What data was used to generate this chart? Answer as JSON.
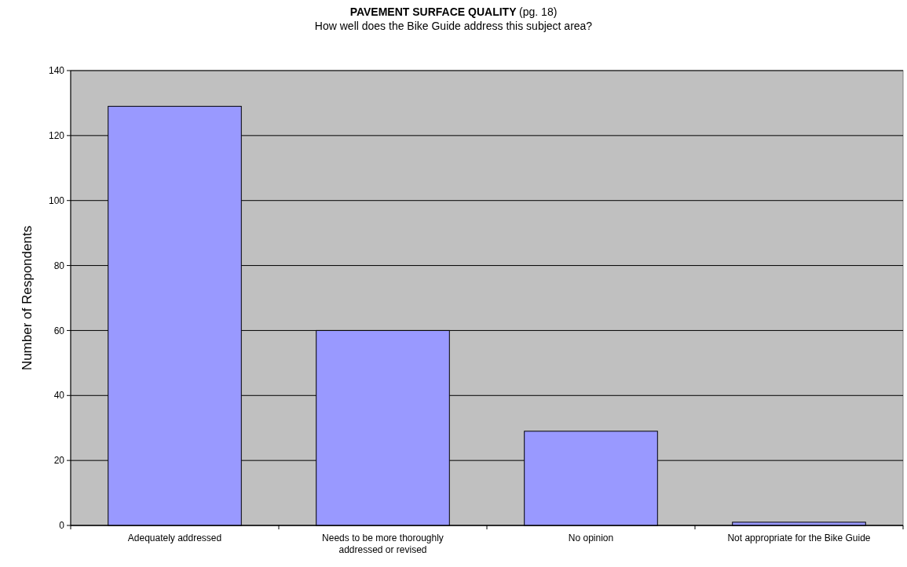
{
  "chart_data": {
    "type": "bar",
    "title": "PAVEMENT SURFACE QUALITY (pg. 18)",
    "subtitle": "How well does the Bike Guide address this subject area?",
    "ylabel": "Number of Respondents",
    "categories": [
      "Adequately addressed",
      "Needs to be more thoroughly addressed or revised",
      "No opinion",
      "Not appropriate for the Bike Guide"
    ],
    "values": [
      129,
      60,
      29,
      1
    ],
    "color": "#9999ff",
    "ylim": [
      0,
      140
    ],
    "yticks": [
      0,
      20,
      40,
      60,
      80,
      100,
      120,
      140
    ],
    "grid": "y"
  }
}
